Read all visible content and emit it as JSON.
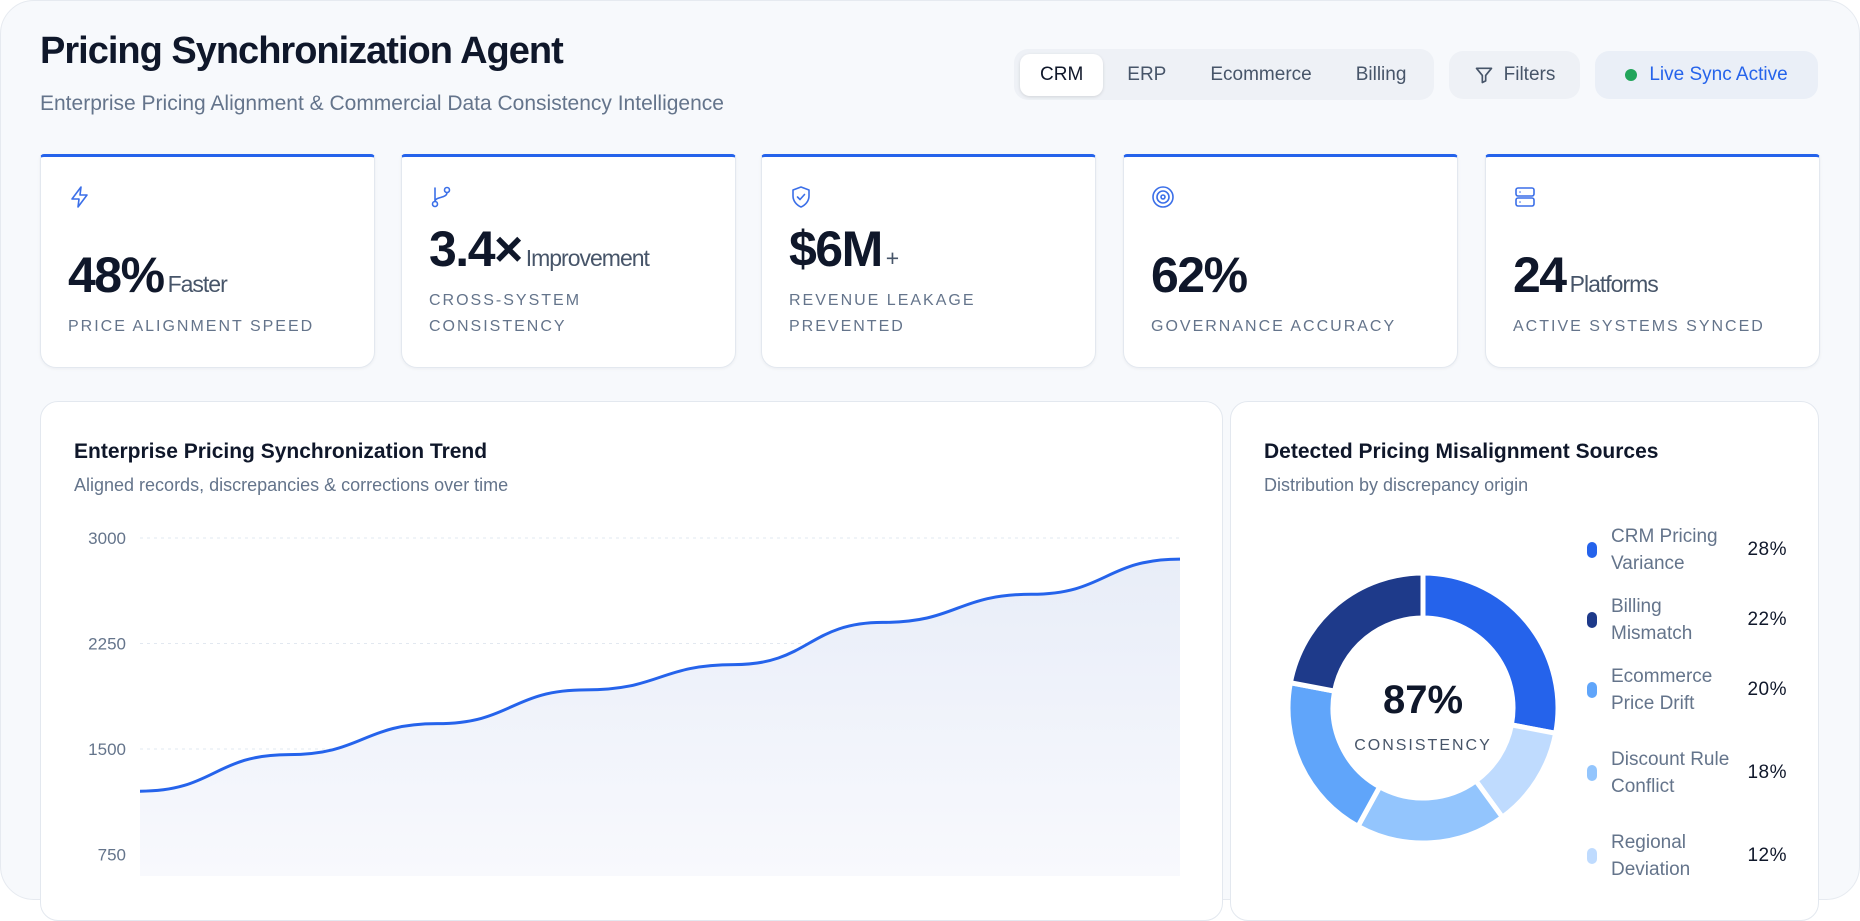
{
  "header": {
    "title": "Pricing Synchronization Agent",
    "subtitle": "Enterprise Pricing Alignment & Commercial Data Consistency Intelligence"
  },
  "tabs": [
    {
      "label": "CRM",
      "active": true
    },
    {
      "label": "ERP"
    },
    {
      "label": "Ecommerce"
    },
    {
      "label": "Billing"
    }
  ],
  "filters_label": "Filters",
  "live_status": "Live Sync Active",
  "colors": {
    "accent": "#2563eb",
    "live": "#22a55b"
  },
  "kpis": [
    {
      "icon": "lightning-icon",
      "value": "48%",
      "suffix": "Faster",
      "label": "Price Alignment Speed"
    },
    {
      "icon": "git-branch-icon",
      "value": "3.4×",
      "suffix": "Improvement",
      "label": "Cross-System Consistency"
    },
    {
      "icon": "shield-check-icon",
      "value": "$6M",
      "suffix": "+",
      "label": "Revenue Leakage Prevented"
    },
    {
      "icon": "target-icon",
      "value": "62%",
      "suffix": "",
      "label": "Governance Accuracy"
    },
    {
      "icon": "server-icon",
      "value": "24",
      "suffix": "Platforms",
      "label": "Active Systems Synced"
    }
  ],
  "chart_data": [
    {
      "type": "area",
      "title": "Enterprise Pricing Synchronization Trend",
      "subtitle": "Aligned records, discrepancies & corrections over time",
      "y_ticks": [
        "3000",
        "2250",
        "1500",
        "750"
      ],
      "ylim": [
        0,
        3000
      ],
      "grid": true,
      "series": [
        {
          "values": [
            1200,
            1460,
            1680,
            1920,
            2100,
            2400,
            2600,
            2850
          ],
          "color": "#2563eb"
        }
      ]
    },
    {
      "type": "pie",
      "title": "Detected Pricing Misalignment Sources",
      "subtitle": "Distribution by discrepancy origin",
      "center_value": "87%",
      "center_label": "CONSISTENCY",
      "legend": [
        {
          "label": "CRM Pricing Variance",
          "value": 28,
          "display": "28%",
          "color": "#2563eb"
        },
        {
          "label": "Billing Mismatch",
          "value": 22,
          "display": "22%",
          "color": "#1e3a8a"
        },
        {
          "label": "Ecommerce Price Drift",
          "value": 20,
          "display": "20%",
          "color": "#60a5fa"
        },
        {
          "label": "Discount Rule Conflict",
          "value": 18,
          "display": "18%",
          "color": "#93c5fd"
        },
        {
          "label": "Regional Deviation",
          "value": 12,
          "display": "12%",
          "color": "#bfdbfe"
        }
      ],
      "clockwise_order": [
        "CRM Pricing Variance",
        "Regional Deviation",
        "Discount Rule Conflict",
        "Ecommerce Price Drift",
        "Billing Mismatch"
      ]
    }
  ]
}
